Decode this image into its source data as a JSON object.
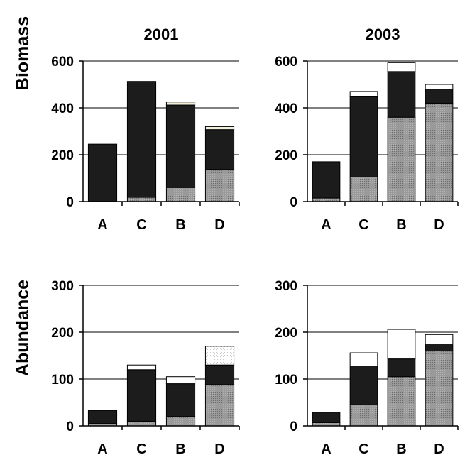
{
  "row_labels": [
    "Biomass",
    "Abundance"
  ],
  "column_titles": [
    "2001",
    "2003"
  ],
  "segment_styles": {
    "grey": "#8c8c8c",
    "black": "#1c1c1c",
    "light": "#f2f0dc",
    "white": "#ffffff",
    "dotted": "#f4f4f4",
    "outline": "#000000",
    "grid": "#000000"
  },
  "chart_data": [
    {
      "type": "bar",
      "stacked": true,
      "title": "2001",
      "ylabel": "Biomass",
      "categories": [
        "A",
        "C",
        "B",
        "D"
      ],
      "ylim": [
        0,
        600
      ],
      "yticks": [
        0,
        200,
        400,
        600
      ],
      "grid": true,
      "series": [
        {
          "style": "grey",
          "values": [
            0,
            18,
            60,
            137
          ]
        },
        {
          "style": "black",
          "values": [
            245,
            495,
            352,
            170
          ]
        },
        {
          "style": "light",
          "values": [
            0,
            0,
            13,
            13
          ]
        }
      ]
    },
    {
      "type": "bar",
      "stacked": true,
      "title": "2003",
      "ylabel": "",
      "categories": [
        "A",
        "C",
        "B",
        "D"
      ],
      "ylim": [
        0,
        600
      ],
      "yticks": [
        0,
        200,
        400,
        600
      ],
      "grid": true,
      "series": [
        {
          "style": "grey",
          "values": [
            15,
            105,
            360,
            420
          ]
        },
        {
          "style": "black",
          "values": [
            155,
            345,
            195,
            60
          ]
        },
        {
          "style": "white",
          "values": [
            0,
            20,
            38,
            20
          ]
        }
      ]
    },
    {
      "type": "bar",
      "stacked": true,
      "title": "",
      "ylabel": "Abundance",
      "categories": [
        "A",
        "C",
        "B",
        "D"
      ],
      "ylim": [
        0,
        300
      ],
      "yticks": [
        0,
        100,
        200,
        300
      ],
      "grid": true,
      "series": [
        {
          "style": "grey",
          "values": [
            5,
            10,
            20,
            88
          ]
        },
        {
          "style": "black",
          "values": [
            28,
            110,
            70,
            42
          ]
        },
        {
          "style": "white",
          "values": [
            0,
            10,
            15,
            0
          ]
        },
        {
          "style": "dotted",
          "values": [
            0,
            0,
            0,
            40
          ]
        }
      ]
    },
    {
      "type": "bar",
      "stacked": true,
      "title": "",
      "ylabel": "",
      "categories": [
        "A",
        "C",
        "B",
        "D"
      ],
      "ylim": [
        0,
        300
      ],
      "yticks": [
        0,
        100,
        200,
        300
      ],
      "grid": true,
      "series": [
        {
          "style": "grey",
          "values": [
            7,
            45,
            105,
            160
          ]
        },
        {
          "style": "black",
          "values": [
            22,
            83,
            38,
            15
          ]
        },
        {
          "style": "white",
          "values": [
            0,
            28,
            63,
            20
          ]
        }
      ]
    }
  ]
}
